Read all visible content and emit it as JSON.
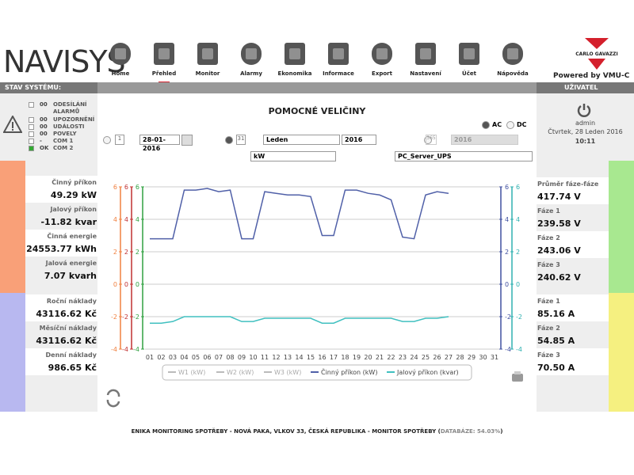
{
  "header": {
    "logo": "NAVISYS",
    "brand": "CARLO GAVAZZI",
    "powered": "Powered by  VMU-C"
  },
  "nav": [
    "Home",
    "Přehled",
    "Monitor",
    "Alarmy",
    "Ekonomika",
    "Informace",
    "Export",
    "Nastavení",
    "Účet",
    "Nápověda"
  ],
  "status": {
    "title": "STAV SYSTÉMU:",
    "items": [
      {
        "count": "00",
        "label": "ODESÍLÁNÍ ALARMŮ"
      },
      {
        "count": "00",
        "label": "UPOZORNĚNÍ"
      },
      {
        "count": "00",
        "label": "UDÁLOSTI"
      },
      {
        "count": "00",
        "label": "POVELY"
      },
      {
        "count": "-",
        "label": "COM 1"
      },
      {
        "count": "OK",
        "label": "COM 2"
      }
    ]
  },
  "user": {
    "title": "UŽIVATEL",
    "name": "admin",
    "date": "Čtvrtek, 28 Leden 2016",
    "time": "10:11"
  },
  "panel": {
    "title": "POMOCNÉ VELIČINY",
    "ac": "AC",
    "dc": "DC",
    "day_icon": "1",
    "date": "28-01-2016",
    "month_icon": "31",
    "month": "Leden",
    "year": "2016",
    "year_icon": "365",
    "year_disabled": "2016",
    "unit": "kW",
    "device": "PC_Server_UPS"
  },
  "left_metrics": [
    {
      "label": "Činný příkon",
      "value": "49.29 kW"
    },
    {
      "label": "Jalový příkon",
      "value": "-11.82 kvar"
    },
    {
      "label": "Činná energie",
      "value": "24553.77 kWh"
    },
    {
      "label": "Jalová energie",
      "value": "7.07 kvarh"
    }
  ],
  "costs": [
    {
      "label": "Roční náklady",
      "value": "43116.62 Kč"
    },
    {
      "label": "Měsíční náklady",
      "value": "43116.62 Kč"
    },
    {
      "label": "Denní náklady",
      "value": "986.65 Kč"
    }
  ],
  "voltages": [
    {
      "label": "Průměr fáze-fáze",
      "value": "417.74 V"
    },
    {
      "label": "Fáze 1",
      "value": "239.58 V"
    },
    {
      "label": "Fáze 2",
      "value": "243.06 V"
    },
    {
      "label": "Fáze 3",
      "value": "240.62 V"
    }
  ],
  "currents": [
    {
      "label": "Fáze 1",
      "value": "85.16 A"
    },
    {
      "label": "Fáze 2",
      "value": "54.85 A"
    },
    {
      "label": "Fáze 3",
      "value": "70.50 A"
    }
  ],
  "footer": {
    "text": "ENIKA MONITORING SPOTŘEBY - NOVÁ PAKA, VLKOV 33, ČESKÁ REPUBLIKA - MONITOR SPOTŘEBY (",
    "db": "DATABÁZE: 54.03%",
    "close": ")"
  },
  "chart_data": {
    "type": "line",
    "categories": [
      "01",
      "02",
      "03",
      "04",
      "05",
      "06",
      "07",
      "08",
      "09",
      "10",
      "11",
      "12",
      "13",
      "14",
      "15",
      "16",
      "17",
      "18",
      "19",
      "20",
      "21",
      "22",
      "23",
      "24",
      "25",
      "26",
      "27",
      "28",
      "29",
      "30",
      "31"
    ],
    "series": [
      {
        "name": "W1 (kW)",
        "color": "#bbbbbb",
        "values": [
          null,
          null,
          null,
          null,
          null,
          null,
          null,
          null,
          null,
          null,
          null,
          null,
          null,
          null,
          null,
          null,
          null,
          null,
          null,
          null,
          null,
          null,
          null,
          null,
          null,
          null,
          null,
          null,
          null,
          null,
          null
        ]
      },
      {
        "name": "W2 (kW)",
        "color": "#bbbbbb",
        "values": [
          null,
          null,
          null,
          null,
          null,
          null,
          null,
          null,
          null,
          null,
          null,
          null,
          null,
          null,
          null,
          null,
          null,
          null,
          null,
          null,
          null,
          null,
          null,
          null,
          null,
          null,
          null,
          null,
          null,
          null,
          null
        ]
      },
      {
        "name": "W3 (kW)",
        "color": "#bbbbbb",
        "values": [
          null,
          null,
          null,
          null,
          null,
          null,
          null,
          null,
          null,
          null,
          null,
          null,
          null,
          null,
          null,
          null,
          null,
          null,
          null,
          null,
          null,
          null,
          null,
          null,
          null,
          null,
          null,
          null,
          null,
          null,
          null
        ]
      },
      {
        "name": "Činný příkon (kW)",
        "color": "#5060a8",
        "values": [
          2.8,
          2.8,
          2.8,
          5.8,
          5.8,
          5.9,
          5.7,
          5.8,
          2.8,
          2.8,
          5.7,
          5.6,
          5.5,
          5.5,
          5.4,
          3.0,
          3.0,
          5.8,
          5.8,
          5.6,
          5.5,
          5.2,
          2.9,
          2.8,
          5.5,
          5.7,
          5.6,
          null,
          null,
          null,
          null
        ]
      },
      {
        "name": "Jalový příkon (kvar)",
        "color": "#40c0c0",
        "values": [
          -2.4,
          -2.4,
          -2.3,
          -2.0,
          -2.0,
          -2.0,
          -2.0,
          -2.0,
          -2.3,
          -2.3,
          -2.1,
          -2.1,
          -2.1,
          -2.1,
          -2.1,
          -2.4,
          -2.4,
          -2.1,
          -2.1,
          -2.1,
          -2.1,
          -2.1,
          -2.3,
          -2.3,
          -2.1,
          -2.1,
          -2.0,
          null,
          null,
          null,
          null
        ]
      }
    ],
    "ylim": [
      -4,
      6
    ],
    "yticks": [
      -4,
      -2,
      0,
      2,
      4,
      6
    ],
    "axis_colors": [
      "#f08040",
      "#c03030",
      "#30a040",
      "#4050a0",
      "#30b0b0"
    ],
    "grid": true
  }
}
